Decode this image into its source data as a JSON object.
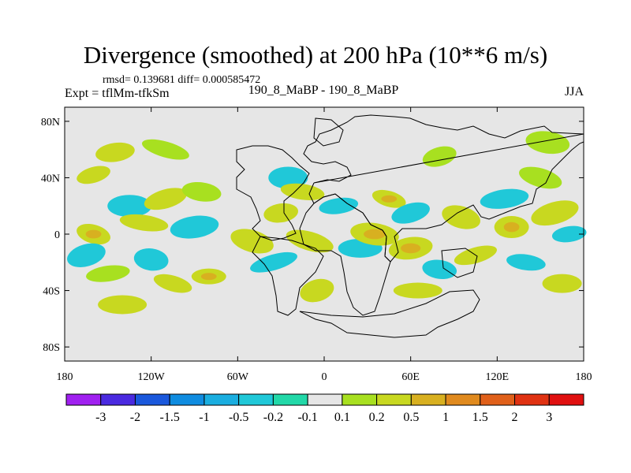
{
  "header": {
    "title": "Divergence (smoothed) at 200 hPa (10**6 m/s)",
    "stats": "rmsd= 0.139681 diff= 0.000585472",
    "experiment": "Expt = tflMm-tfkSm",
    "center_label": "190_8_MaBP - 190_8_MaBP",
    "season": "JJA"
  },
  "chart_data": {
    "type": "heatmap",
    "title": "Divergence (smoothed) at 200 hPa (10**6 m/s)",
    "xlabel": "",
    "ylabel": "",
    "xlim": [
      -180,
      180
    ],
    "ylim": [
      -90,
      90
    ],
    "x_ticks": [
      {
        "value": -180,
        "label": "180"
      },
      {
        "value": -120,
        "label": "120W"
      },
      {
        "value": -60,
        "label": "60W"
      },
      {
        "value": 0,
        "label": "0"
      },
      {
        "value": 60,
        "label": "60E"
      },
      {
        "value": 120,
        "label": "120E"
      },
      {
        "value": 180,
        "label": "180"
      }
    ],
    "y_ticks": [
      {
        "value": 80,
        "label": "80N"
      },
      {
        "value": 40,
        "label": "40N"
      },
      {
        "value": 0,
        "label": "0"
      },
      {
        "value": -40,
        "label": "40S"
      },
      {
        "value": -80,
        "label": "80S"
      }
    ],
    "background_color": "#e6e6e6",
    "colorbar": {
      "levels": [
        "-3",
        "-2",
        "-1.5",
        "-1",
        "-0.5",
        "-0.2",
        "-0.1",
        "0.1",
        "0.2",
        "0.5",
        "1",
        "1.5",
        "2",
        "3"
      ],
      "colors": [
        "#a020f0",
        "#4a2ae0",
        "#1a58dc",
        "#0f8ce0",
        "#1aaee0",
        "#20c8d8",
        "#22d8a8",
        "#e6e6e6",
        "#a8e020",
        "#c8d820",
        "#d8b020",
        "#e08a1e",
        "#e0601a",
        "#e03212",
        "#e01010"
      ]
    },
    "anomalies": [
      {
        "lon": -160,
        "lat": 42,
        "value": 0.3
      },
      {
        "lon": -145,
        "lat": 58,
        "value": 0.3
      },
      {
        "lon": -135,
        "lat": 20,
        "value": -0.3
      },
      {
        "lon": -125,
        "lat": 8,
        "value": 0.3
      },
      {
        "lon": -160,
        "lat": 0,
        "value": 0.4
      },
      {
        "lon": -165,
        "lat": -15,
        "value": -0.3
      },
      {
        "lon": -150,
        "lat": -28,
        "value": 0.2
      },
      {
        "lon": -140,
        "lat": -50,
        "value": 0.3
      },
      {
        "lon": -120,
        "lat": -18,
        "value": -0.3
      },
      {
        "lon": -105,
        "lat": -35,
        "value": 0.3
      },
      {
        "lon": -110,
        "lat": 25,
        "value": 0.3
      },
      {
        "lon": -90,
        "lat": 5,
        "value": -0.2
      },
      {
        "lon": -80,
        "lat": -30,
        "value": 0.4
      },
      {
        "lon": -85,
        "lat": 30,
        "value": 0.2
      },
      {
        "lon": -50,
        "lat": -5,
        "value": 0.3
      },
      {
        "lon": -35,
        "lat": -20,
        "value": -0.3
      },
      {
        "lon": -30,
        "lat": 15,
        "value": 0.3
      },
      {
        "lon": -25,
        "lat": 40,
        "value": -0.3
      },
      {
        "lon": -15,
        "lat": 30,
        "value": 0.3
      },
      {
        "lon": -10,
        "lat": -5,
        "value": 0.3
      },
      {
        "lon": -5,
        "lat": -40,
        "value": 0.3
      },
      {
        "lon": 10,
        "lat": 20,
        "value": -0.3
      },
      {
        "lon": 25,
        "lat": -10,
        "value": -0.3
      },
      {
        "lon": 35,
        "lat": 0,
        "value": 0.5
      },
      {
        "lon": 45,
        "lat": 25,
        "value": 0.4
      },
      {
        "lon": 60,
        "lat": 15,
        "value": -0.3
      },
      {
        "lon": 60,
        "lat": -10,
        "value": 0.4
      },
      {
        "lon": 65,
        "lat": -40,
        "value": 0.3
      },
      {
        "lon": 80,
        "lat": -25,
        "value": -0.3
      },
      {
        "lon": 95,
        "lat": 12,
        "value": 0.3
      },
      {
        "lon": 105,
        "lat": -15,
        "value": 0.3
      },
      {
        "lon": 125,
        "lat": 25,
        "value": -0.3
      },
      {
        "lon": 130,
        "lat": 5,
        "value": 0.4
      },
      {
        "lon": 140,
        "lat": -20,
        "value": -0.3
      },
      {
        "lon": 150,
        "lat": 40,
        "value": 0.2
      },
      {
        "lon": 160,
        "lat": 15,
        "value": 0.3
      },
      {
        "lon": 170,
        "lat": 0,
        "value": -0.3
      },
      {
        "lon": 165,
        "lat": -35,
        "value": 0.3
      },
      {
        "lon": 155,
        "lat": 65,
        "value": 0.2
      },
      {
        "lon": -110,
        "lat": 60,
        "value": 0.2
      },
      {
        "lon": 80,
        "lat": 55,
        "value": 0.2
      }
    ]
  }
}
